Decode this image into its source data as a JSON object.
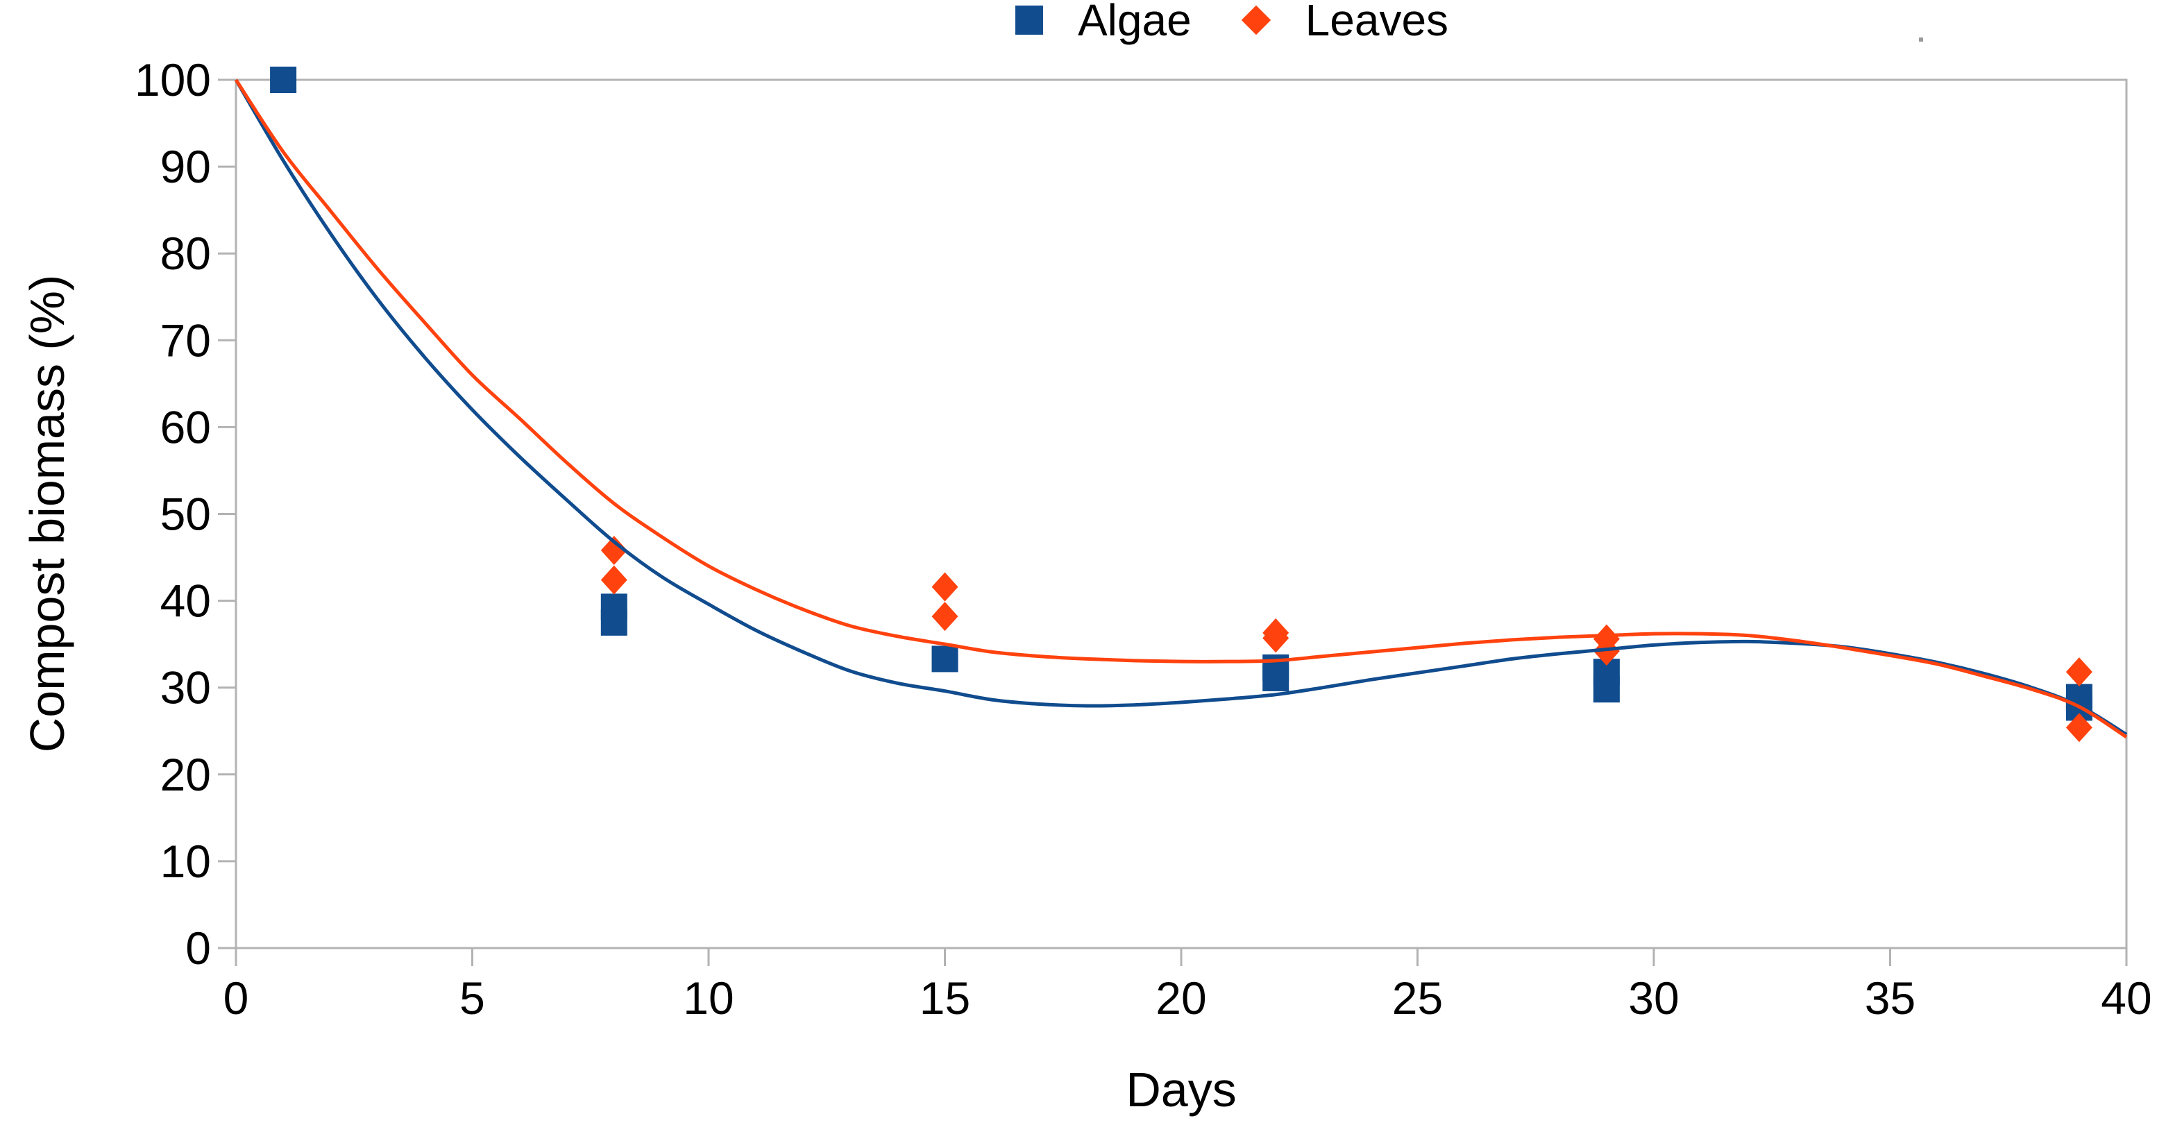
{
  "legend": {
    "position": "top-center"
  },
  "axes": {
    "x_title": "Days",
    "y_title": "Compost biomass (%)"
  },
  "frame_color": "#b3b3b3",
  "chart_data": {
    "type": "scatter",
    "title": "",
    "xlabel": "Days",
    "ylabel": "Compost biomass (%)",
    "xlim": [
      0,
      40
    ],
    "ylim": [
      0,
      100
    ],
    "x_ticks": [
      0,
      5,
      10,
      15,
      20,
      25,
      30,
      35,
      40
    ],
    "y_ticks": [
      0,
      10,
      20,
      30,
      40,
      50,
      60,
      70,
      80,
      90,
      100
    ],
    "grid": "off",
    "frame": "full box, ticks outside left and bottom",
    "legend_position": "top-center",
    "series": [
      {
        "name": "Algae",
        "color": "#104c8e",
        "marker": "square",
        "points": [
          [
            1,
            100
          ],
          [
            8,
            39.3
          ],
          [
            8,
            37.5
          ],
          [
            15,
            33.3
          ],
          [
            22,
            32.3
          ],
          [
            22,
            31.1
          ],
          [
            29,
            31.8
          ],
          [
            29,
            29.8
          ],
          [
            39,
            28.9
          ],
          [
            39,
            27.7
          ]
        ],
        "trend": [
          [
            0,
            100
          ],
          [
            1,
            90.7
          ],
          [
            2,
            82.3
          ],
          [
            3,
            74.7
          ],
          [
            4,
            68.0
          ],
          [
            5,
            62.0
          ],
          [
            6,
            56.6
          ],
          [
            7,
            51.6
          ],
          [
            8,
            46.8
          ],
          [
            9,
            42.8
          ],
          [
            10,
            39.6
          ],
          [
            11,
            36.6
          ],
          [
            12,
            34.1
          ],
          [
            13,
            31.9
          ],
          [
            14,
            30.5
          ],
          [
            15,
            29.6
          ],
          [
            16,
            28.6
          ],
          [
            17,
            28.1
          ],
          [
            18,
            27.9
          ],
          [
            19,
            28.0
          ],
          [
            20,
            28.3
          ],
          [
            21,
            28.7
          ],
          [
            22,
            29.2
          ],
          [
            23,
            30.0
          ],
          [
            24,
            30.9
          ],
          [
            25,
            31.7
          ],
          [
            26,
            32.5
          ],
          [
            27,
            33.3
          ],
          [
            28,
            33.9
          ],
          [
            29,
            34.4
          ],
          [
            30,
            34.9
          ],
          [
            31,
            35.2
          ],
          [
            32,
            35.3
          ],
          [
            33,
            35.1
          ],
          [
            34,
            34.7
          ],
          [
            35,
            33.9
          ],
          [
            36,
            32.9
          ],
          [
            37,
            31.6
          ],
          [
            38,
            30.0
          ],
          [
            39,
            27.9
          ],
          [
            40,
            24.6
          ]
        ]
      },
      {
        "name": "Leaves",
        "color": "#ff420e",
        "marker": "diamond",
        "points": [
          [
            8,
            45.8
          ],
          [
            8,
            42.4
          ],
          [
            15,
            41.6
          ],
          [
            15,
            38.2
          ],
          [
            22,
            36.3
          ],
          [
            22,
            35.7
          ],
          [
            29,
            35.6
          ],
          [
            29,
            34.2
          ],
          [
            39,
            31.8
          ],
          [
            39,
            25.4
          ]
        ],
        "trend": [
          [
            0,
            100
          ],
          [
            1,
            91.7
          ],
          [
            2,
            84.9
          ],
          [
            3,
            78.2
          ],
          [
            4,
            72.0
          ],
          [
            5,
            66.0
          ],
          [
            6,
            61.0
          ],
          [
            7,
            55.9
          ],
          [
            8,
            51.2
          ],
          [
            9,
            47.4
          ],
          [
            10,
            44.0
          ],
          [
            11,
            41.3
          ],
          [
            12,
            39.0
          ],
          [
            13,
            37.1
          ],
          [
            14,
            35.9
          ],
          [
            15,
            35.0
          ],
          [
            16,
            34.1
          ],
          [
            17,
            33.6
          ],
          [
            18,
            33.3
          ],
          [
            19,
            33.1
          ],
          [
            20,
            33.0
          ],
          [
            21,
            33.0
          ],
          [
            22,
            33.1
          ],
          [
            23,
            33.6
          ],
          [
            24,
            34.1
          ],
          [
            25,
            34.6
          ],
          [
            26,
            35.1
          ],
          [
            27,
            35.5
          ],
          [
            28,
            35.8
          ],
          [
            29,
            36.0
          ],
          [
            30,
            36.2
          ],
          [
            31,
            36.2
          ],
          [
            32,
            36.0
          ],
          [
            33,
            35.4
          ],
          [
            34,
            34.6
          ],
          [
            35,
            33.7
          ],
          [
            36,
            32.7
          ],
          [
            37,
            31.3
          ],
          [
            38,
            29.8
          ],
          [
            39,
            27.8
          ],
          [
            40,
            24.3
          ]
        ]
      }
    ]
  }
}
